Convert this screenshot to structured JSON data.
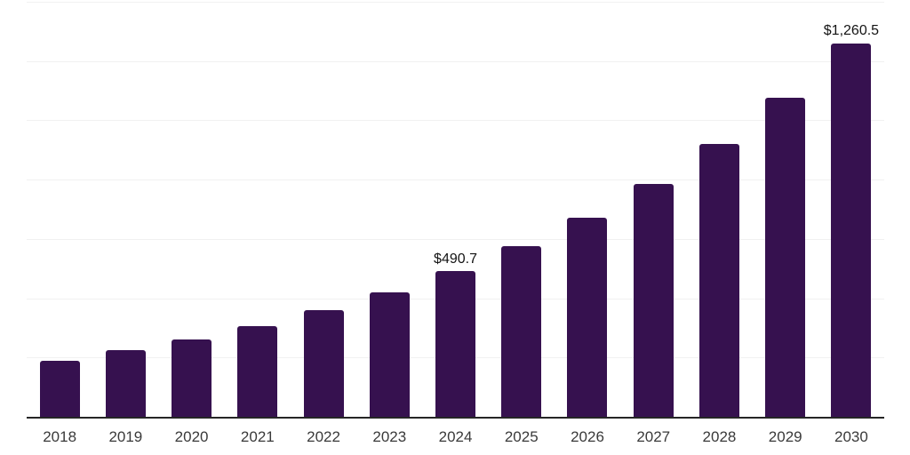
{
  "chart_data": {
    "type": "bar",
    "title": "",
    "xlabel": "",
    "ylabel": "",
    "categories": [
      "2018",
      "2019",
      "2020",
      "2021",
      "2022",
      "2023",
      "2024",
      "2025",
      "2026",
      "2027",
      "2028",
      "2029",
      "2030"
    ],
    "values": [
      190.3,
      225.7,
      261.9,
      306.3,
      359.6,
      421.2,
      490.7,
      574.2,
      671.9,
      786.2,
      919.9,
      1076.4,
      1260.5
    ],
    "point_labels": {
      "2024": "$490.7",
      "2030": "$1,260.5"
    },
    "ylim": [
      0,
      1400
    ],
    "gridline_step": 200,
    "grid": "horizontal-only",
    "y_axis_tick_labels_visible": false,
    "legend_position": "none"
  },
  "colors": {
    "background": "#FFFFFF",
    "bar": "#36114F",
    "axis_line": "#262626",
    "gridline": "#F1F1F1",
    "x_label": "#3A3A3A",
    "value_label": "#141414"
  }
}
